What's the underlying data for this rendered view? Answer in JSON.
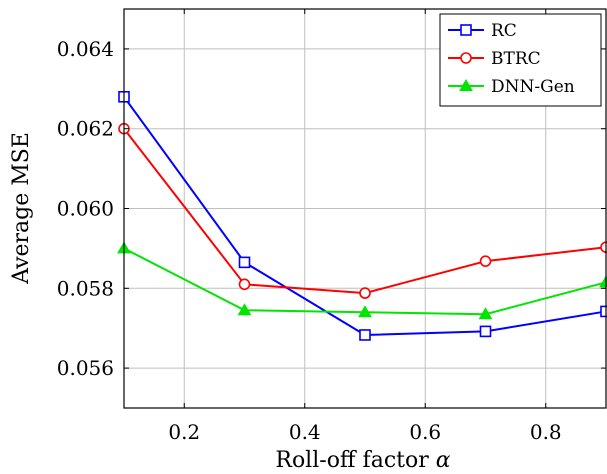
{
  "chart_data": {
    "type": "line",
    "title": "",
    "xlabel": "Roll-off factor",
    "xlabel_symbol": "α",
    "ylabel": "Average MSE",
    "x": [
      0.1,
      0.3,
      0.5,
      0.7,
      0.9
    ],
    "xlim": [
      0.1,
      0.9
    ],
    "ylim": [
      0.055,
      0.065
    ],
    "xticks": [
      0.2,
      0.4,
      0.6,
      0.8
    ],
    "xtick_labels": [
      "0.2",
      "0.4",
      "0.6",
      "0.8"
    ],
    "yticks": [
      0.056,
      0.058,
      0.06,
      0.062,
      0.064
    ],
    "ytick_labels": [
      "0.056",
      "0.058",
      "0.060",
      "0.062",
      "0.064"
    ],
    "grid": true,
    "legend_position": "top-right",
    "series": [
      {
        "name": "RC",
        "color": "#0000ff",
        "marker": "square-open",
        "values": [
          0.0628,
          0.05865,
          0.05683,
          0.05692,
          0.05742
        ]
      },
      {
        "name": "BTRC",
        "color": "#ff0000",
        "marker": "circle-open",
        "values": [
          0.062,
          0.0581,
          0.05788,
          0.05868,
          0.05903
        ]
      },
      {
        "name": "DNN-Gen",
        "color": "#00e600",
        "marker": "triangle-filled",
        "values": [
          0.059,
          0.05745,
          0.0574,
          0.05735,
          0.05815
        ]
      }
    ]
  }
}
